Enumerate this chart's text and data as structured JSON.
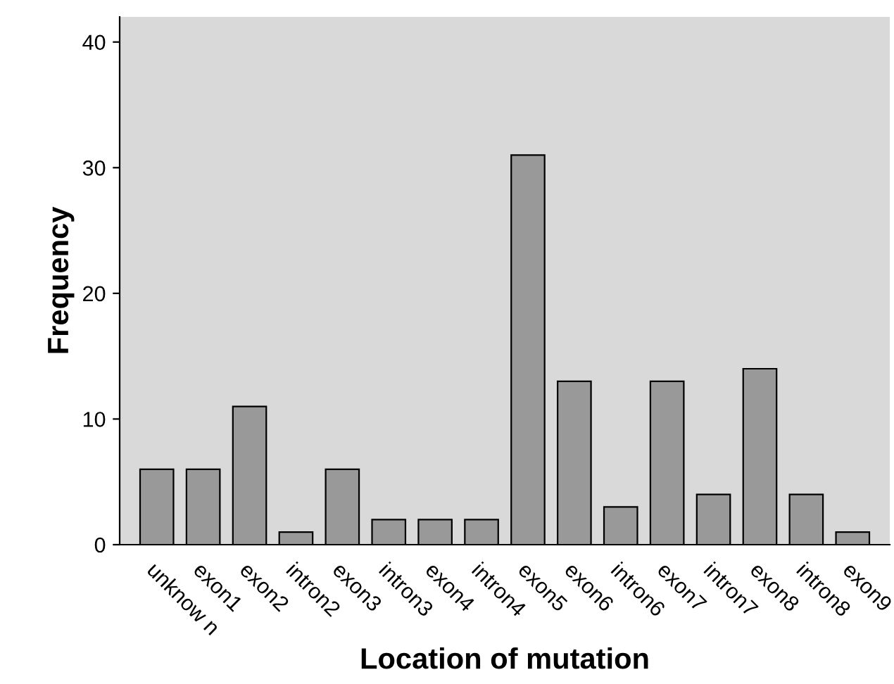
{
  "chart_data": {
    "type": "bar",
    "xlabel": "Location of mutation",
    "ylabel": "Frequency",
    "categories": [
      "unknow n",
      "exon1",
      "exon2",
      "intron2",
      "exon3",
      "intron3",
      "exon4",
      "intron4",
      "exon5",
      "exon6",
      "intron6",
      "exon7",
      "intron7",
      "exon8",
      "intron8",
      "exon9"
    ],
    "values": [
      6,
      6,
      11,
      1,
      6,
      2,
      2,
      2,
      31,
      13,
      3,
      13,
      4,
      14,
      4,
      1
    ],
    "color": "#999999",
    "ylim": [
      0,
      42
    ],
    "yticks": [
      0,
      10,
      20,
      30,
      40
    ],
    "grid": false,
    "legend": false
  }
}
